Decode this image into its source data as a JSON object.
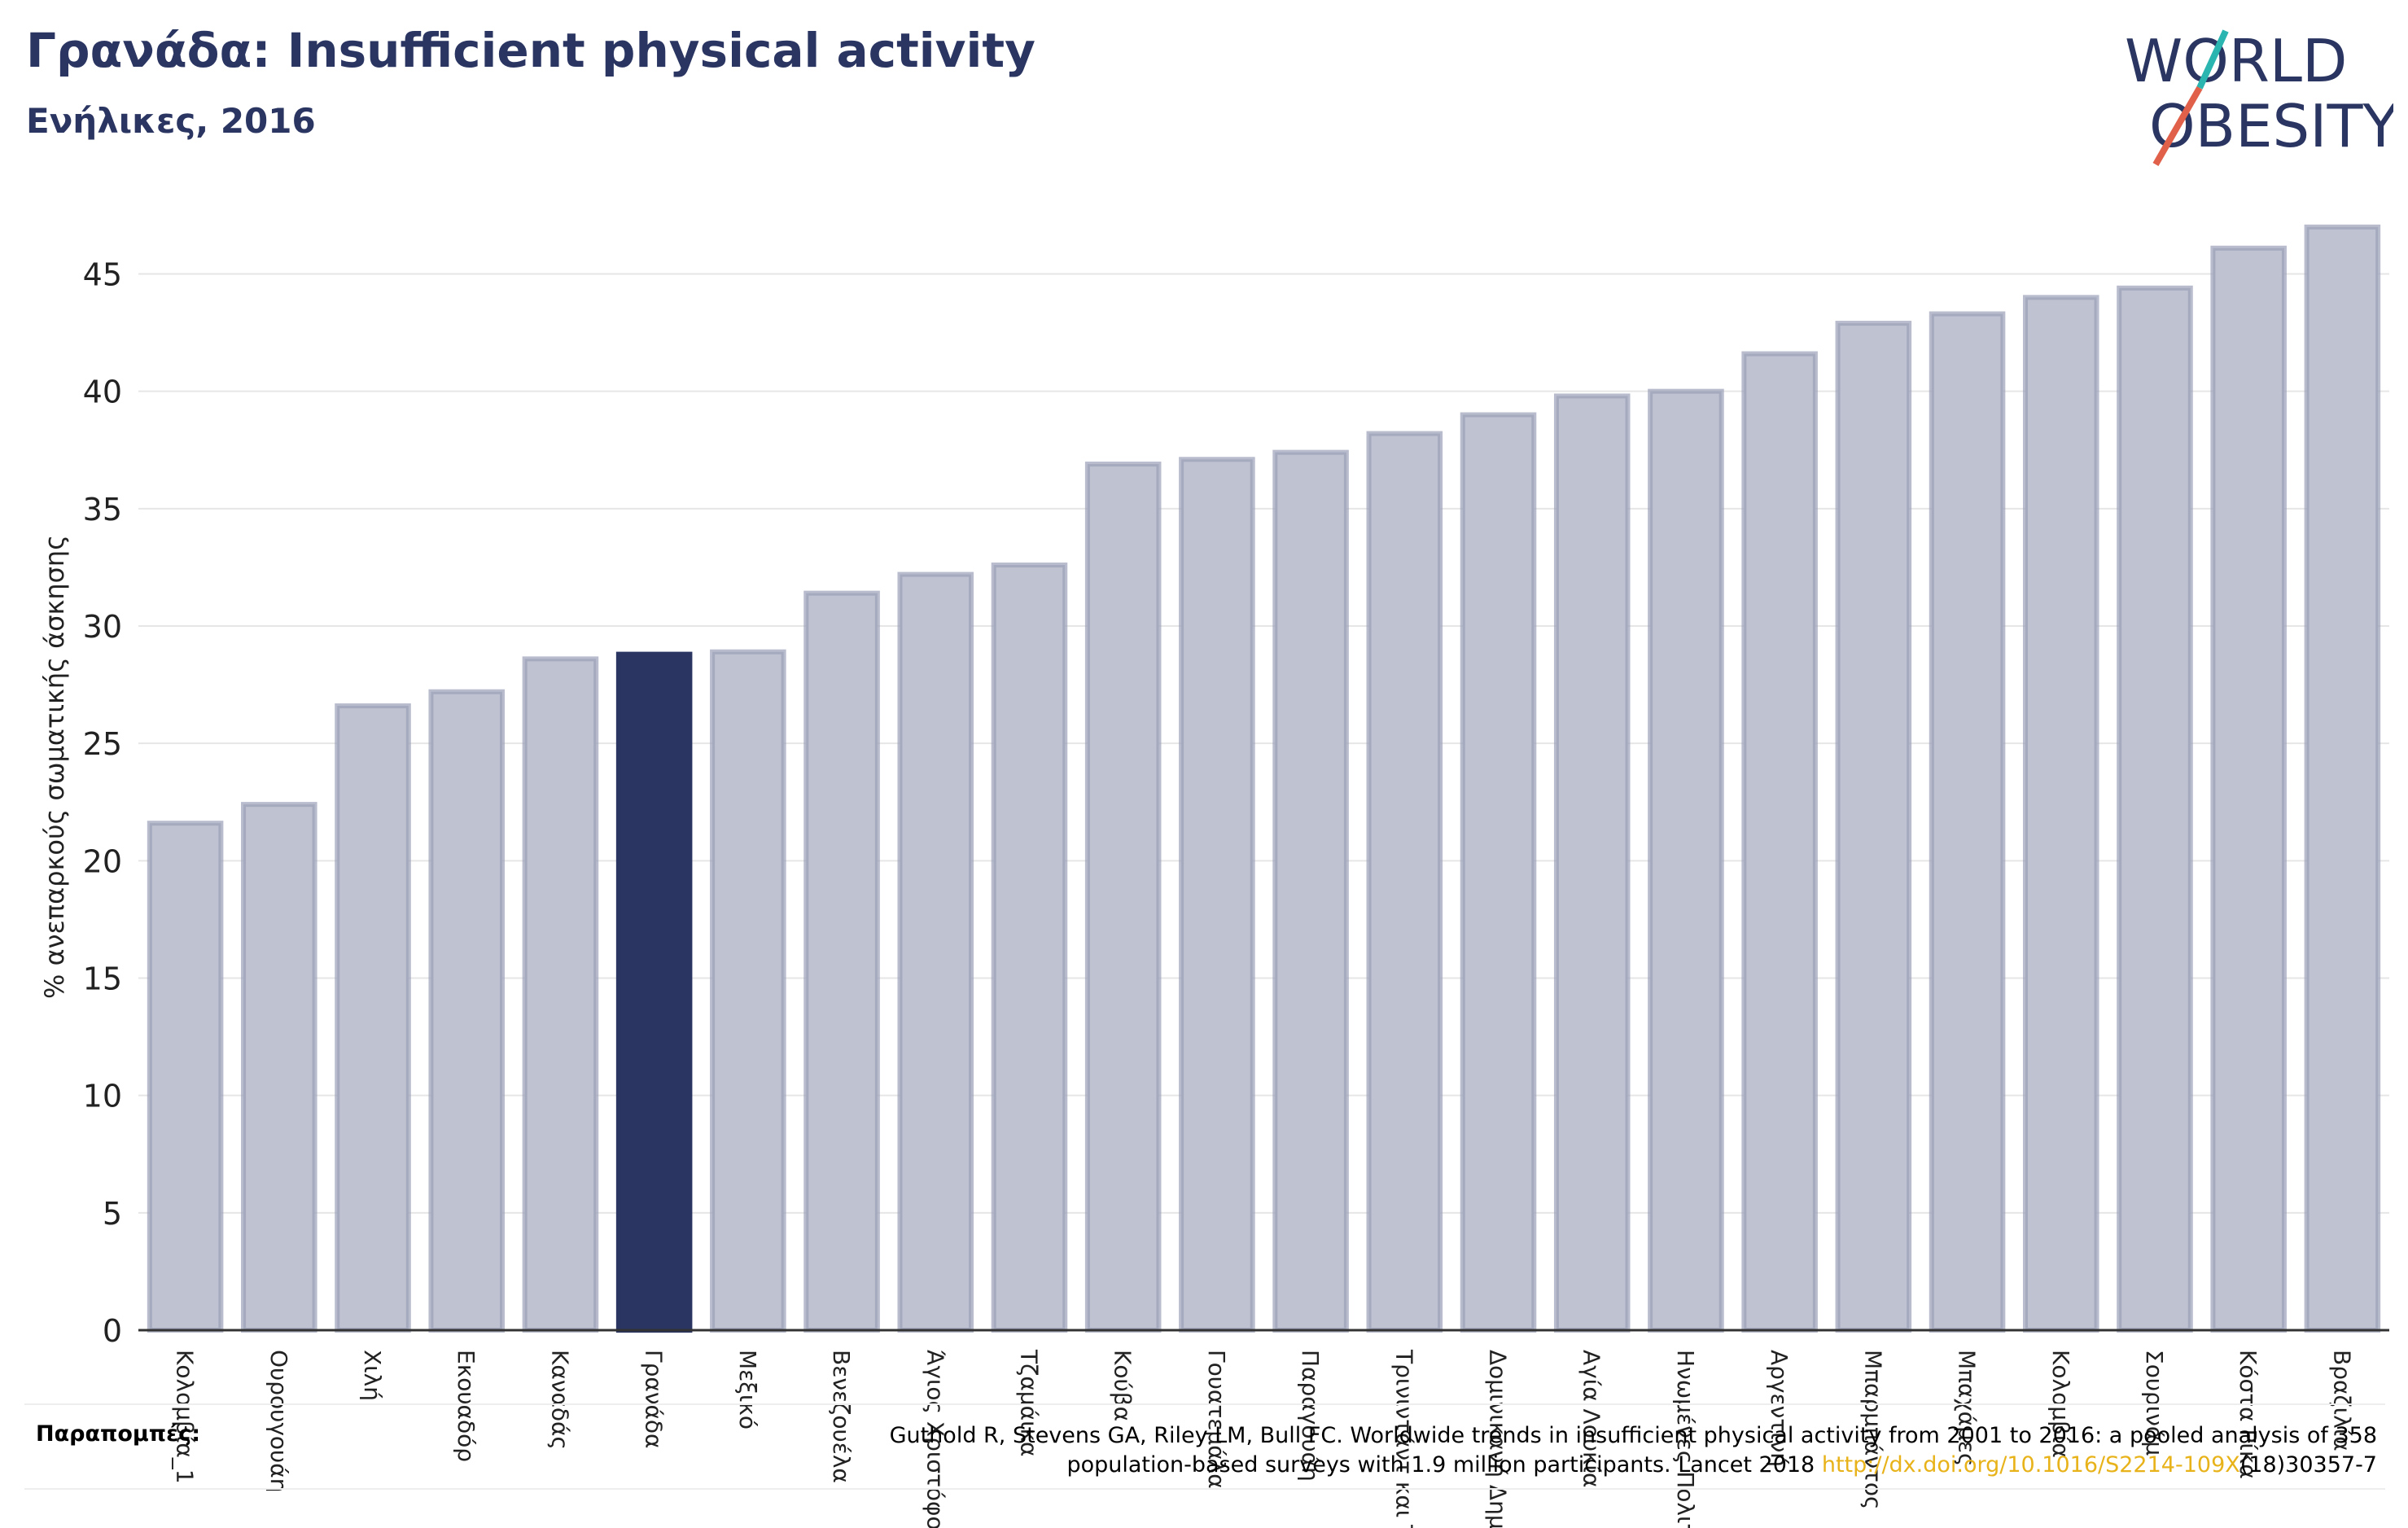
{
  "header": {
    "title": "Γρανάδα: Insufficient physical activity",
    "subtitle": "Ενήλικες, 2016"
  },
  "logo": {
    "line1": "WORLD",
    "line2": "OBESITY",
    "accent_teal": "#2bb5b0",
    "accent_red": "#e0604a"
  },
  "colors": {
    "highlight": "#2a3561",
    "bar_fill": "#bfc2d0",
    "bar_edge": "#9a9fb8",
    "grid": "#e6e6e6",
    "axis": "#333333"
  },
  "chart_data": {
    "type": "bar",
    "ylabel": "% ανεπαρκούς σωματικής άσκησης",
    "ylim": [
      0,
      48
    ],
    "yticks": [
      0,
      5,
      10,
      15,
      20,
      25,
      30,
      35,
      40,
      45
    ],
    "highlight": "Γρανάδα",
    "categories": [
      "Κολομβία_1",
      "Ουρουγουάη",
      "Χιλή",
      "Εκουαδόρ",
      "Καναδάς",
      "Γρανάδα",
      "Μεξικό",
      "Βενεζουέλα",
      "Άγιος Χριστόφορος",
      "Τζαμάικα",
      "Κούβα",
      "Γουατεμάλα",
      "Παραγουάη",
      "Τρινιντάντ και Τομπάγκο",
      "Δομινικανή Δημοκρατία",
      "Αγία Λουκία",
      "Ηνωμένες Πολιτείες",
      "Αργεντινή",
      "Μπαρμπάντος",
      "Μπαχάμες",
      "Κολομβία",
      "Σουρινάμ",
      "Κόστα Ρίκα",
      "Βραζιλία"
    ],
    "tick_labels": [
      "Κολομβία_1",
      "Ουρουγουάη",
      "Χιλή",
      "Εκουαδόρ",
      "Καναδάς",
      "Γρανάδα",
      "Μεξικό",
      "Βενεζουέλα",
      "Άγιος Χριστόφορος",
      "Τζαμάικα",
      "Κούβα",
      "Γουατεμάλα",
      "Παραγουάη",
      "Τρινιντάντ και Τ",
      "Δομινικανή Δημ",
      "Αγία Λουκία",
      "Ηνωμένες Πολιτ",
      "Αργεντινή",
      "Μπαρμπάντος",
      "Μπαχάμες",
      "Κολομβία",
      "Σουρινάμ",
      "Κόστα Ρίκα",
      "Βραζιλία"
    ],
    "values": [
      21.6,
      22.4,
      26.6,
      27.2,
      28.6,
      28.8,
      28.9,
      31.4,
      32.2,
      32.6,
      36.9,
      37.1,
      37.4,
      38.2,
      39.0,
      39.8,
      40.0,
      41.6,
      42.9,
      43.3,
      44.0,
      44.4,
      46.1,
      47.0
    ]
  },
  "references": {
    "label": "Παραπομπές:",
    "text_line1": "Guthold R, Stevens GA, Riley LM, Bull FC. Worldwide trends in insufficient physical activity from 2001 to 2016: a pooled analysis of 358",
    "text_line2_a": "population-based surveys with 1.9 million participants. Lancet 2018 ",
    "link": "http://dx.doi.org/10.1016/S2214-109X",
    "text_line2_b": "(18)30357-7"
  }
}
